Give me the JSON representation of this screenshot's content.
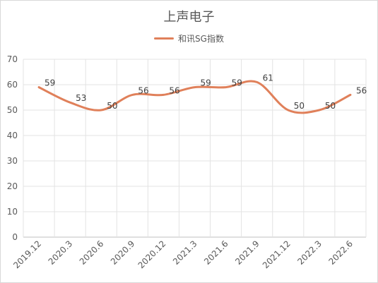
{
  "chart_data": {
    "type": "line",
    "title": "上声电子",
    "categories": [
      "2019.12",
      "2020.3",
      "2020.6",
      "2020.9",
      "2020.12",
      "2021.3",
      "2021.6",
      "2021.9",
      "2021.12",
      "2022.3",
      "2022.6"
    ],
    "series": [
      {
        "name": "和讯SG指数",
        "values": [
          59,
          53,
          50,
          56,
          56,
          59,
          59,
          61,
          50,
          50,
          56
        ],
        "color": "#e0805a"
      }
    ],
    "ylim": [
      0,
      70
    ],
    "yticks": [
      0,
      10,
      20,
      30,
      40,
      50,
      60,
      70
    ],
    "grid": true,
    "legend_position": "top",
    "smooth": true
  }
}
